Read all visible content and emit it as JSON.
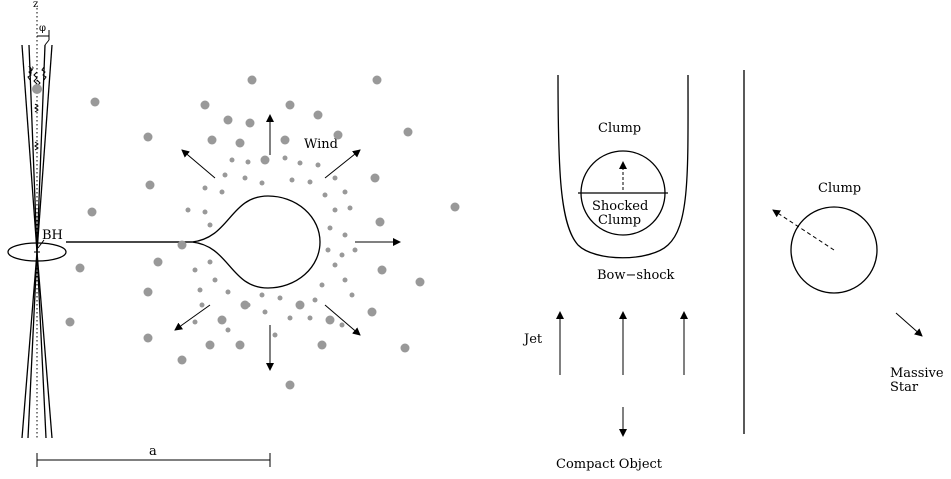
{
  "left_panel": {
    "axis_label": "z",
    "angle_label": "φ",
    "gamma_label": "γ",
    "black_hole_label": "BH",
    "wind_label": "Wind",
    "separation_label": "a"
  },
  "right_panel": {
    "clump_label": "Clump",
    "shocked_clump_line1": "Shocked",
    "shocked_clump_line2": "Clump",
    "bow_shock_label": "Bow−shock",
    "jet_label": "Jet",
    "compact_object_label": "Compact Object",
    "side_clump_label": "Clump",
    "massive_star_line1": "Massive",
    "massive_star_line2": "Star"
  },
  "colors": {
    "line": "#000000",
    "clump_dot": "#999999"
  }
}
